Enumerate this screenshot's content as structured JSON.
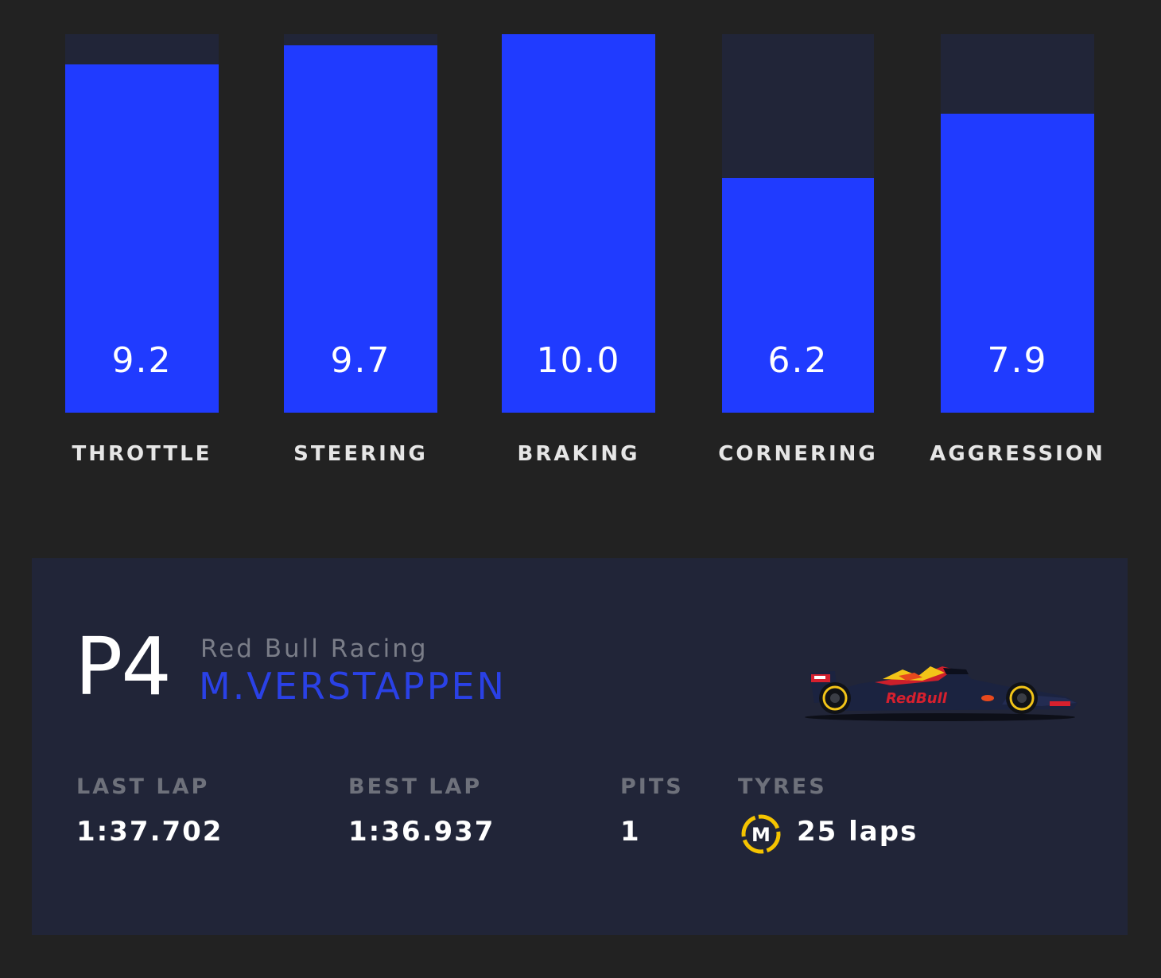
{
  "chart_data": {
    "type": "bar",
    "categories": [
      "THROTTLE",
      "STEERING",
      "BRAKING",
      "CORNERING",
      "AGGRESSION"
    ],
    "values": [
      9.2,
      9.7,
      10.0,
      6.2,
      7.9
    ],
    "value_labels": [
      "9.2",
      "9.7",
      "10.0",
      "6.2",
      "7.9"
    ],
    "ylim": [
      0,
      10
    ],
    "grid": false,
    "bar_color": "#203bff",
    "track_color": "#212538"
  },
  "driver": {
    "position": "P4",
    "team": "Red Bull Racing",
    "name": "M.VERSTAPPEN",
    "car_icon": "red-bull-car"
  },
  "stats": {
    "last_lap_label": "LAST LAP",
    "last_lap_value": "1:37.702",
    "best_lap_label": "BEST LAP",
    "best_lap_value": "1:36.937",
    "pits_label": "PITS",
    "pits_value": "1",
    "tyres_label": "TYRES",
    "tyre_compound": "M",
    "tyre_color": "#f5c400",
    "tyre_age": "25 laps"
  },
  "colors": {
    "background": "#222222",
    "card": "#212538",
    "accent": "#203bff",
    "driver_name": "#2a41e6"
  }
}
